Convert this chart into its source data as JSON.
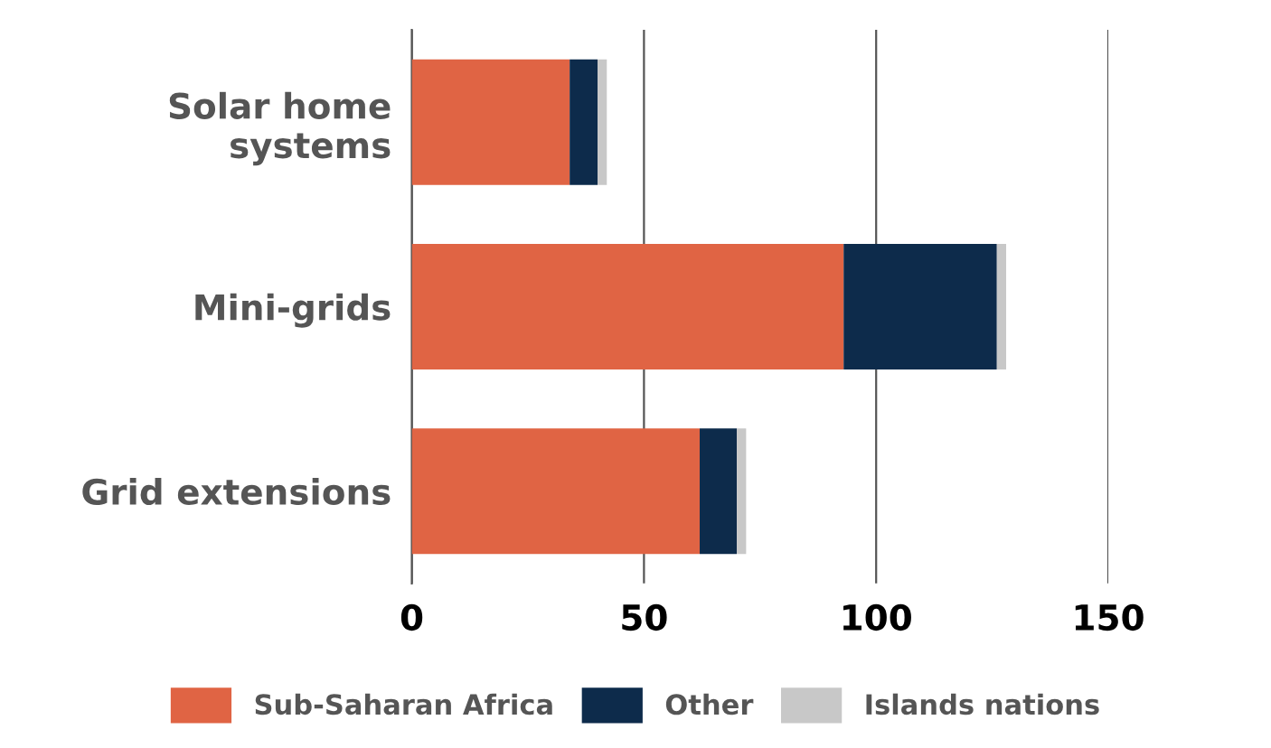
{
  "chart_data": {
    "type": "bar",
    "orientation": "horizontal",
    "stacked": true,
    "categories": [
      "Solar home\nsystems",
      "Mini-grids",
      "Grid extensions"
    ],
    "series": [
      {
        "name": "Sub-Saharan Africa",
        "color": "#e06444",
        "values": [
          34,
          93,
          62
        ]
      },
      {
        "name": "Other",
        "color": "#0d2b4b",
        "values": [
          6,
          33,
          8
        ]
      },
      {
        "name": "Islands nations",
        "color": "#c8c8c8",
        "values": [
          2,
          2,
          2
        ]
      }
    ],
    "xlim": [
      0,
      150
    ],
    "xticks": [
      0,
      50,
      100,
      150
    ],
    "grid": "x",
    "legend": "bottom"
  }
}
